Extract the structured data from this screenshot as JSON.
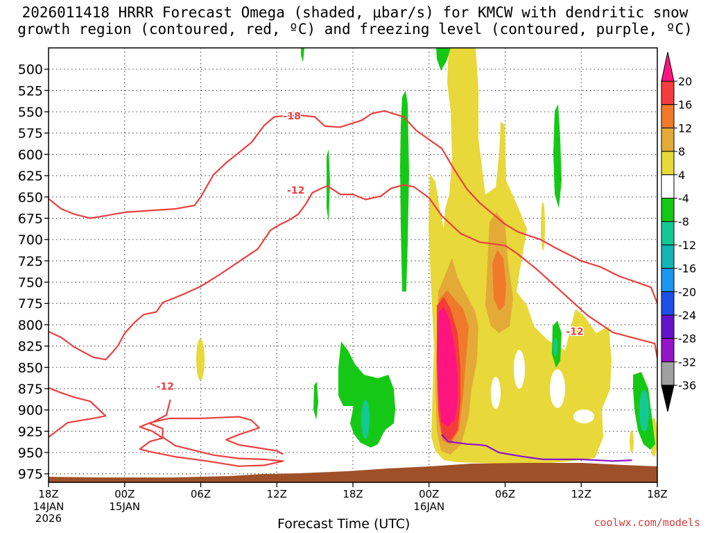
{
  "header": {
    "title_line1": "2026011418 HRRR Forecast Omega (shaded, μbar/s) for KMCW with dendritic snow",
    "title_line2": "growth region (contoured, red, ºC) and freezing level (contoured, purple, ºC)"
  },
  "footer": {
    "credit": "coolwx.com/models"
  },
  "chart_data": {
    "type": "heatmap",
    "title": "2026011418 HRRR Forecast Omega (shaded, μbar/s) for KMCW with dendritic snow growth region (contoured, red, ºC) and freezing level (contoured, purple, ºC)",
    "xlabel": "Forecast Time (UTC)",
    "ylabel": "",
    "y_axis": {
      "ticks": [
        500,
        525,
        550,
        575,
        600,
        625,
        650,
        675,
        700,
        725,
        750,
        775,
        800,
        825,
        850,
        875,
        900,
        925,
        950,
        975
      ],
      "range": [
        475,
        985
      ]
    },
    "x_axis": {
      "range_hours": [
        0,
        48
      ],
      "ticks": [
        {
          "hour": 0,
          "label": "18Z",
          "sub": [
            "14JAN",
            "2026"
          ]
        },
        {
          "hour": 6,
          "label": "00Z",
          "sub": [
            "15JAN"
          ]
        },
        {
          "hour": 12,
          "label": "06Z",
          "sub": []
        },
        {
          "hour": 18,
          "label": "12Z",
          "sub": []
        },
        {
          "hour": 24,
          "label": "18Z",
          "sub": []
        },
        {
          "hour": 30,
          "label": "00Z",
          "sub": [
            "16JAN"
          ]
        },
        {
          "hour": 36,
          "label": "06Z",
          "sub": []
        },
        {
          "hour": 42,
          "label": "12Z",
          "sub": []
        },
        {
          "hour": 48,
          "label": "18Z",
          "sub": []
        }
      ]
    },
    "grid": true,
    "colorbar": {
      "placement": "right",
      "labels": [
        "20",
        "16",
        "12",
        "8",
        "4",
        "-4",
        "-8",
        "-12",
        "-16",
        "-20",
        "-24",
        "-28",
        "-32",
        "-36"
      ],
      "colors": [
        "#ff1480",
        "#f53c3c",
        "#f07a2a",
        "#e3aa38",
        "#e8d83a",
        "#ffffff",
        "#16c816",
        "#14c896",
        "#14b4b4",
        "#1e96f0",
        "#1e50e6",
        "#6414c8",
        "#9614c8",
        "#a0a0a0",
        "#000000"
      ]
    },
    "contours": [
      {
        "label": "-18",
        "color": "#ea3f3f",
        "points": [
          [
            0,
            652
          ],
          [
            1,
            664
          ],
          [
            2,
            670
          ],
          [
            3.3,
            675
          ],
          [
            4.5,
            672
          ],
          [
            6,
            668
          ],
          [
            8,
            666
          ],
          [
            10,
            664
          ],
          [
            11.5,
            660
          ],
          [
            12,
            650
          ],
          [
            13,
            624
          ],
          [
            14,
            610
          ],
          [
            15,
            598
          ],
          [
            16,
            586
          ],
          [
            17,
            566
          ],
          [
            17.8,
            556
          ],
          [
            18.5,
            555
          ],
          [
            19.8,
            554
          ],
          [
            21,
            556
          ],
          [
            21.8,
            567
          ],
          [
            23,
            568
          ],
          [
            24.7,
            560
          ],
          [
            25.5,
            552
          ],
          [
            26.5,
            549
          ],
          [
            28,
            556
          ],
          [
            29,
            572
          ],
          [
            31,
            593
          ],
          [
            32,
            618
          ],
          [
            33,
            641
          ],
          [
            34,
            657
          ],
          [
            36,
            682
          ],
          [
            37,
            691
          ],
          [
            38,
            696
          ],
          [
            38.8,
            700
          ],
          [
            40,
            710
          ],
          [
            42,
            725
          ],
          [
            43.5,
            732
          ],
          [
            45,
            743
          ],
          [
            47.5,
            756
          ],
          [
            48,
            775
          ]
        ]
      },
      {
        "label": "-12",
        "color": "#ea3f3f",
        "points": [
          [
            0,
            808
          ],
          [
            1,
            815
          ],
          [
            2,
            826
          ],
          [
            3.5,
            838
          ],
          [
            4.5,
            841
          ],
          [
            5,
            833
          ],
          [
            5.5,
            824
          ],
          [
            6,
            810
          ],
          [
            6.8,
            797
          ],
          [
            7.5,
            788
          ],
          [
            8.5,
            785
          ],
          [
            9,
            774
          ],
          [
            10.5,
            765
          ],
          [
            12,
            755
          ],
          [
            13.5,
            741
          ],
          [
            15,
            726
          ],
          [
            16.5,
            711
          ],
          [
            17.5,
            689
          ],
          [
            18.3,
            682
          ],
          [
            19,
            677
          ],
          [
            19.7,
            670
          ],
          [
            20.3,
            658
          ],
          [
            20.8,
            645
          ],
          [
            21.5,
            640
          ],
          [
            22,
            637
          ],
          [
            23,
            647
          ],
          [
            24,
            647
          ],
          [
            25,
            653
          ],
          [
            26.2,
            649
          ],
          [
            27,
            640
          ],
          [
            28,
            636
          ],
          [
            28.8,
            638
          ],
          [
            30,
            651
          ],
          [
            31,
            672
          ],
          [
            32.5,
            693
          ],
          [
            34,
            703
          ],
          [
            36,
            707
          ],
          [
            37,
            717
          ],
          [
            38.5,
            735
          ],
          [
            40.5,
            762
          ],
          [
            42.5,
            789
          ],
          [
            44.5,
            809
          ],
          [
            46,
            815
          ],
          [
            47.8,
            822
          ],
          [
            48,
            839
          ]
        ]
      },
      {
        "label": "-12",
        "color": "#ea3f3f",
        "points": [
          [
            0,
            874
          ],
          [
            1,
            880
          ],
          [
            2,
            885
          ],
          [
            3.3,
            890
          ],
          [
            4,
            900
          ],
          [
            4.5,
            907
          ],
          [
            3.5,
            910
          ],
          [
            1.5,
            915
          ],
          [
            0,
            932
          ]
        ]
      },
      {
        "label": "",
        "color": "#ea3f3f",
        "points": [
          [
            9.6,
            888
          ],
          [
            9.3,
            906
          ],
          [
            8,
            916
          ],
          [
            9,
            922
          ],
          [
            9,
            932
          ],
          [
            10,
            942
          ],
          [
            13,
            953
          ],
          [
            15,
            957
          ],
          [
            17,
            958
          ],
          [
            18.5,
            960
          ],
          [
            17,
            965
          ],
          [
            15,
            966
          ],
          [
            12.5,
            960
          ],
          [
            10,
            955
          ],
          [
            8,
            949
          ],
          [
            7.2,
            946
          ],
          [
            8,
            937
          ],
          [
            9,
            933
          ],
          [
            8.2,
            925
          ],
          [
            7.2,
            920
          ],
          [
            8,
            915
          ],
          [
            9.5,
            910
          ],
          [
            12,
            910
          ],
          [
            13.5,
            909
          ],
          [
            15,
            908
          ],
          [
            16,
            912
          ],
          [
            16.6,
            921
          ],
          [
            15,
            929
          ],
          [
            14,
            935
          ],
          [
            15,
            941
          ],
          [
            18,
            948
          ],
          [
            18.5,
            952
          ]
        ]
      },
      {
        "label": "",
        "color": "#8a14c8",
        "points": [
          [
            31,
            929
          ],
          [
            31.5,
            937
          ],
          [
            33,
            940
          ],
          [
            34,
            941
          ],
          [
            34.5,
            942
          ],
          [
            35.5,
            950
          ],
          [
            37.5,
            955
          ],
          [
            39,
            958
          ],
          [
            42,
            958
          ],
          [
            44.5,
            960
          ],
          [
            46,
            959
          ]
        ]
      }
    ]
  }
}
